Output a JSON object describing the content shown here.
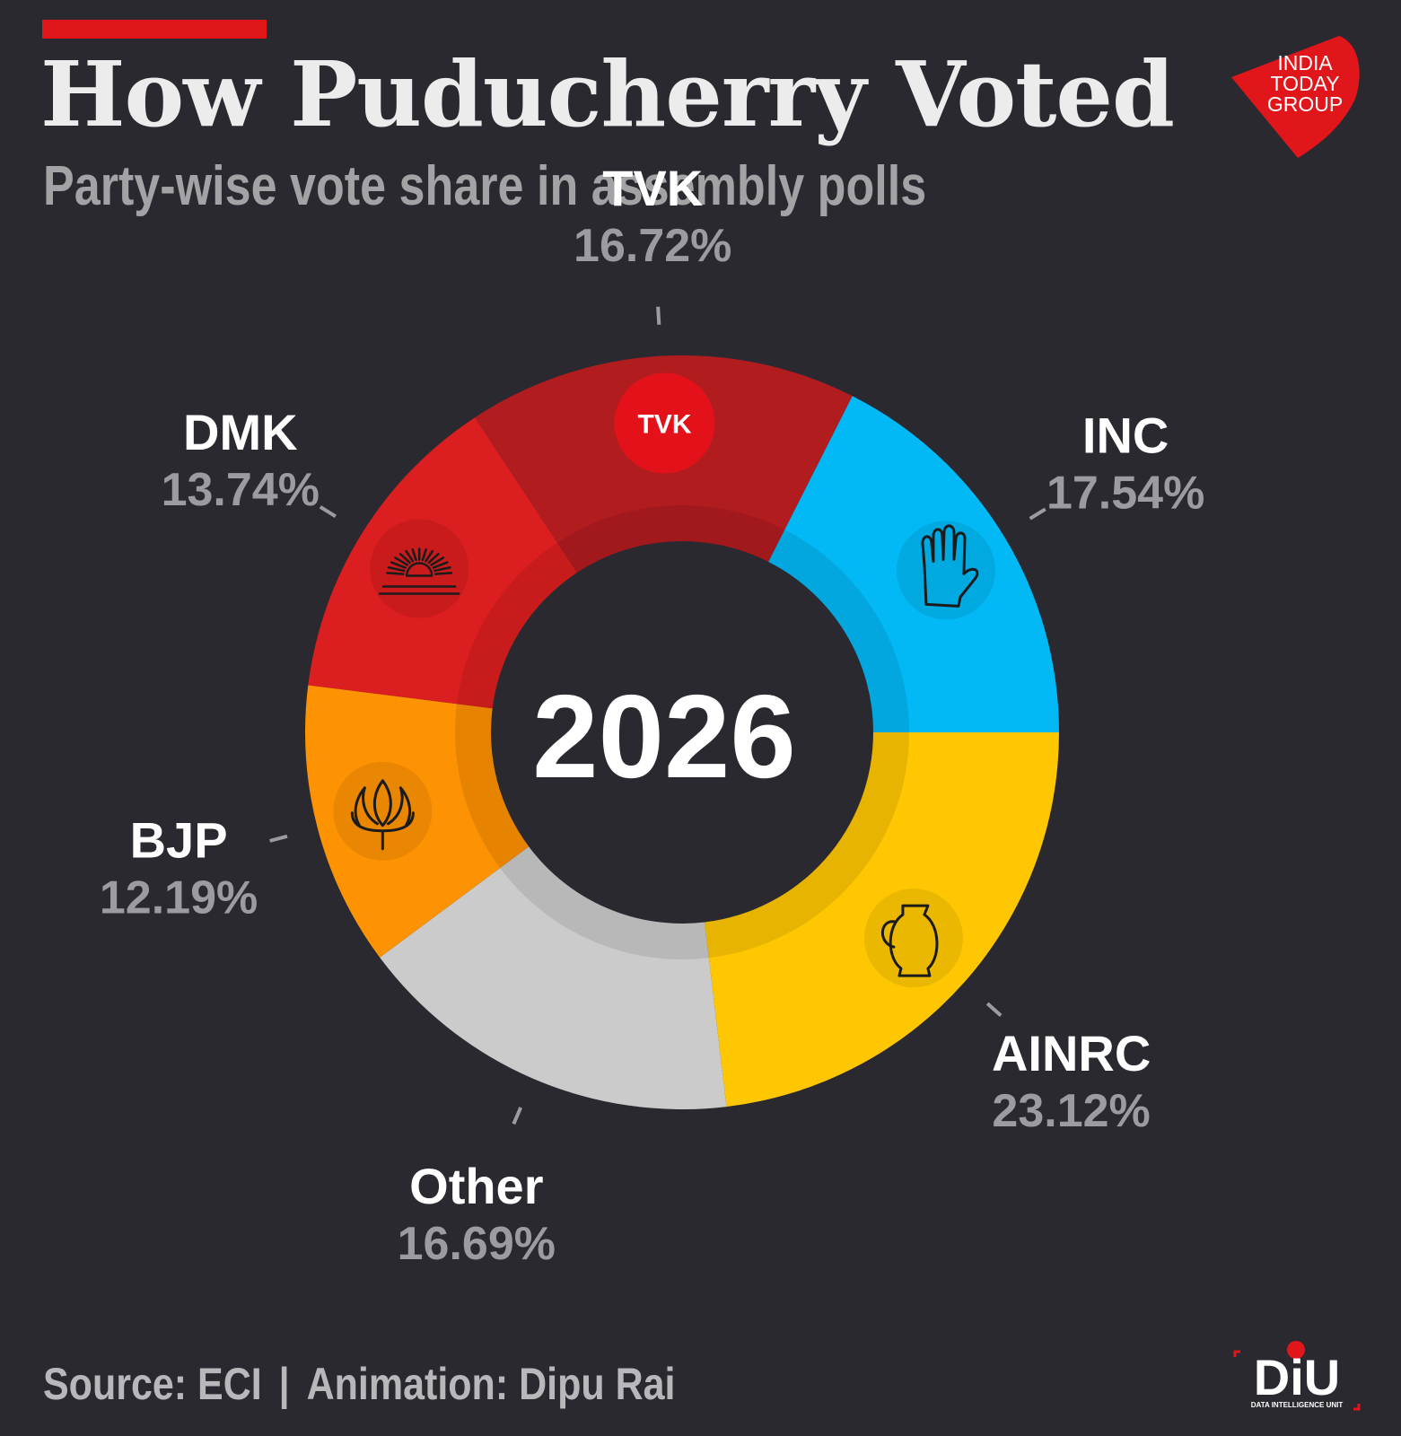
{
  "header": {
    "title": "How Puducherry Voted",
    "subtitle": "Party-wise vote share in assembly polls"
  },
  "logo_top": {
    "lines": [
      "INDIA",
      "TODAY",
      "GROUP"
    ],
    "color": "#e0161b"
  },
  "chart_data": {
    "type": "pie",
    "variant": "donut",
    "title": "How Puducherry Voted",
    "subtitle": "Party-wise vote share in assembly polls",
    "center_label": "2026",
    "slices": [
      {
        "name": "AINRC",
        "value": 23.12,
        "label": "23.12%",
        "color": "#fec702",
        "icon": "water-jug-icon"
      },
      {
        "name": "Other",
        "value": 16.69,
        "label": "16.69%",
        "color": "#cbcbcb",
        "icon": ""
      },
      {
        "name": "BJP",
        "value": 12.19,
        "label": "12.19%",
        "color": "#fd9203",
        "icon": "lotus-icon"
      },
      {
        "name": "DMK",
        "value": 13.74,
        "label": "13.74%",
        "color": "#db1e1f",
        "icon": "rising-sun-icon"
      },
      {
        "name": "TVK",
        "value": 16.72,
        "label": "16.72%",
        "color": "#b11c1f",
        "icon": "tvk-badge-icon",
        "icon_text": "TVK"
      },
      {
        "name": "INC",
        "value": 17.54,
        "label": "17.54%",
        "color": "#02b8f5",
        "icon": "hand-icon"
      }
    ],
    "start_angle_deg": 0,
    "direction": "clockwise",
    "legend": "none"
  },
  "footer": {
    "source": "Source: ECI",
    "separator": "|",
    "credit": "Animation: Dipu Rai"
  },
  "logo_bottom": {
    "text": "DiU",
    "tagline": "DATA INTELLIGENCE UNIT"
  }
}
